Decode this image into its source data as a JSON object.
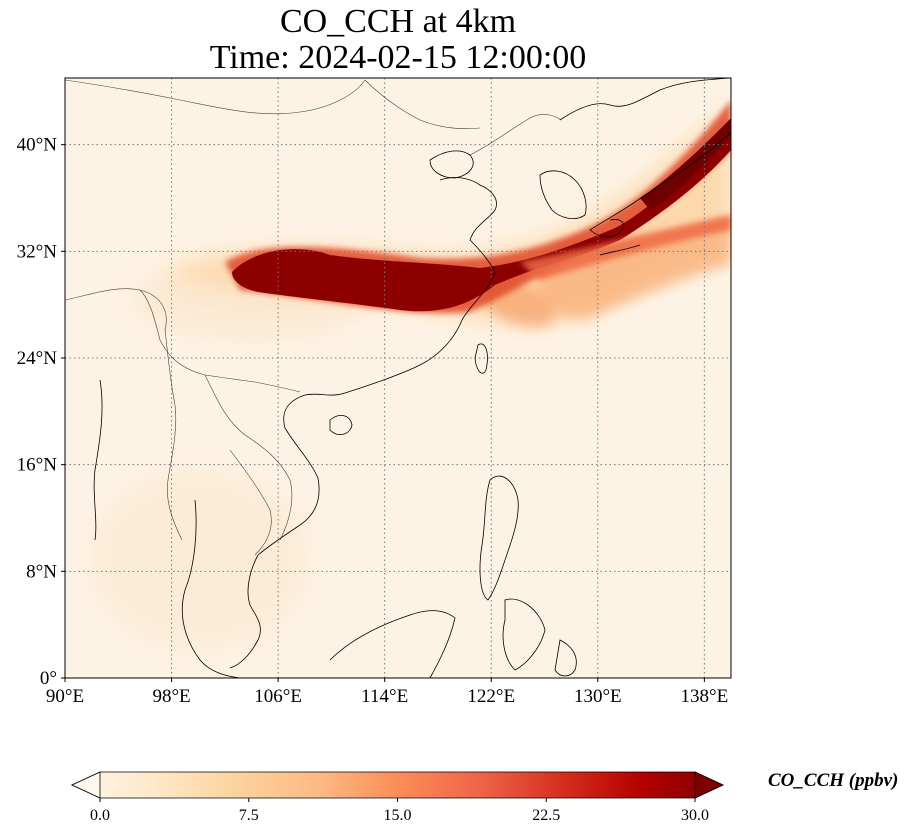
{
  "title": {
    "line1": "CO_CCH at 4km",
    "line2": "Time: 2024-02-15 12:00:00"
  },
  "map": {
    "variable": "CO_CCH",
    "level": "4km",
    "time": "2024-02-15 12:00:00",
    "lon_range": [
      90,
      140
    ],
    "lat_range": [
      0,
      45
    ],
    "lon_ticks": [
      "90°E",
      "98°E",
      "106°E",
      "114°E",
      "122°E",
      "130°E",
      "138°E"
    ],
    "lat_ticks": [
      "0°",
      "8°N",
      "16°N",
      "24°N",
      "32°N",
      "40°N"
    ],
    "gridlines": "dotted",
    "colormap": "OrRd",
    "features": [
      "coastlines",
      "country borders"
    ]
  },
  "colorbar": {
    "label": "CO_CCH (ppbv)",
    "min": 0.0,
    "max": 30.0,
    "extend": "both",
    "ticks": [
      "0.0",
      "7.5",
      "15.0",
      "22.5",
      "30.0"
    ],
    "stops": [
      "#fff7ec",
      "#fee8c8",
      "#fdd49e",
      "#fdbb84",
      "#fc8d59",
      "#ef6548",
      "#d7301f",
      "#b30000",
      "#7f0000"
    ]
  }
}
